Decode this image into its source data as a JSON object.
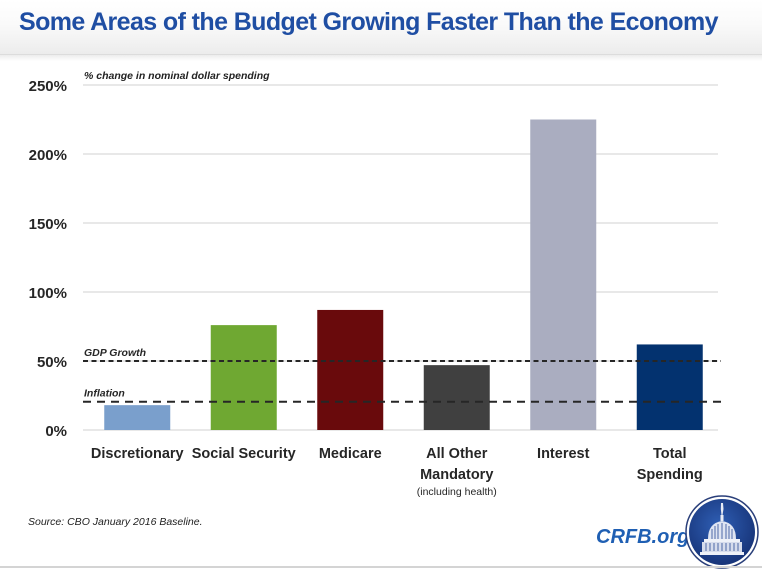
{
  "header": {
    "title": "Some Areas of the Budget Growing Faster Than the Economy"
  },
  "footer": {
    "source": "Source: CBO January 2016 Baseline.",
    "brand": "CRFB.org",
    "logo_icon": "capitol-dome-seal-icon"
  },
  "colors": {
    "title": "#1f4ea3",
    "brand": "#1f5fb3",
    "logo": "#1f3f8f"
  },
  "chart_data": {
    "type": "bar",
    "title": "Some Areas of the Budget Growing Faster Than the Economy",
    "subtitle": "% change in nominal dollar spending",
    "xlabel": "",
    "ylabel": "% change in nominal dollar spending",
    "ylim": [
      0,
      250
    ],
    "yticks": [
      0,
      50,
      100,
      150,
      200,
      250
    ],
    "ytick_labels": [
      "0%",
      "50%",
      "100%",
      "150%",
      "200%",
      "250%"
    ],
    "grid": true,
    "categories": [
      {
        "label": [
          "Discretionary"
        ],
        "note": ""
      },
      {
        "label": [
          "Social Security"
        ],
        "note": ""
      },
      {
        "label": [
          "Medicare"
        ],
        "note": ""
      },
      {
        "label": [
          "All Other",
          "Mandatory"
        ],
        "note": "(including health)"
      },
      {
        "label": [
          "Interest"
        ],
        "note": ""
      },
      {
        "label": [
          "Total",
          "Spending"
        ],
        "note": ""
      }
    ],
    "values": [
      18,
      76,
      87,
      47,
      225,
      62
    ],
    "bar_colors": [
      "#7a9fcc",
      "#6fa832",
      "#690a0c",
      "#404040",
      "#aaadc0",
      "#03326f"
    ],
    "reference_lines": [
      {
        "name": "GDP Growth",
        "value": 50,
        "style": "dashed"
      },
      {
        "name": "Inflation",
        "value": 20.5,
        "style": "dashed"
      }
    ]
  }
}
